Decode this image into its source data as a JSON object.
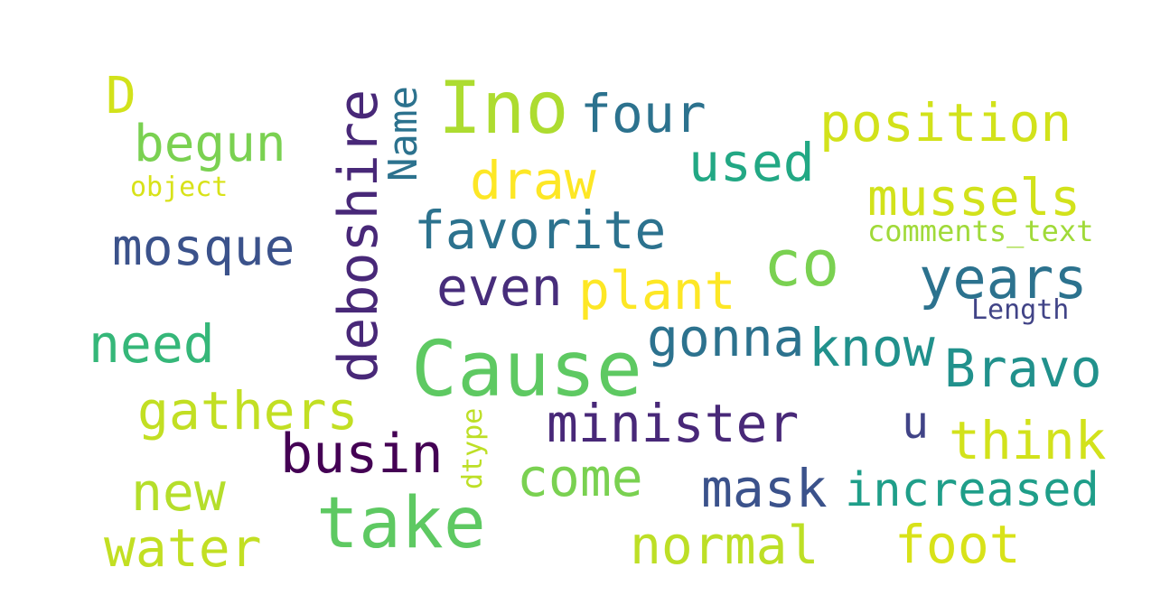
{
  "wordcloud": {
    "background_color": "#ffffff",
    "words": [
      {
        "text": "Cause",
        "color": "#5ec962"
      },
      {
        "text": "take",
        "color": "#5ec962"
      },
      {
        "text": "Ino",
        "color": "#addc30"
      },
      {
        "text": "co",
        "color": "#7ad151"
      },
      {
        "text": "deboshire",
        "color": "#482878"
      },
      {
        "text": "busin",
        "color": "#440154"
      },
      {
        "text": "position",
        "color": "#d2e21b"
      },
      {
        "text": "four",
        "color": "#2c728e"
      },
      {
        "text": "begun",
        "color": "#7ad151"
      },
      {
        "text": "mosque",
        "color": "#3b528b"
      },
      {
        "text": "favorite",
        "color": "#2c728e"
      },
      {
        "text": "plant",
        "color": "#fde725"
      },
      {
        "text": "even",
        "color": "#472d7b"
      },
      {
        "text": "draw",
        "color": "#fde725"
      },
      {
        "text": "used",
        "color": "#22a884"
      },
      {
        "text": "mussels",
        "color": "#d2e21b"
      },
      {
        "text": "years",
        "color": "#2c728e"
      },
      {
        "text": "need",
        "color": "#35b779"
      },
      {
        "text": "gathers",
        "color": "#c2df23"
      },
      {
        "text": "minister",
        "color": "#482878"
      },
      {
        "text": "gonna",
        "color": "#2c728e"
      },
      {
        "text": "know",
        "color": "#21918c"
      },
      {
        "text": "Bravo",
        "color": "#21918c"
      },
      {
        "text": "think",
        "color": "#d2e21b"
      },
      {
        "text": "come",
        "color": "#7ad151"
      },
      {
        "text": "mask",
        "color": "#3b528b"
      },
      {
        "text": "increased",
        "color": "#1f9e89"
      },
      {
        "text": "new",
        "color": "#b5de2b"
      },
      {
        "text": "water",
        "color": "#c2df23"
      },
      {
        "text": "normal",
        "color": "#bddf26"
      },
      {
        "text": "foot",
        "color": "#d8e219"
      },
      {
        "text": "u",
        "color": "#414487"
      },
      {
        "text": "D",
        "color": "#d2e21b"
      },
      {
        "text": "Name",
        "color": "#2c728e"
      },
      {
        "text": "object",
        "color": "#d8e219"
      },
      {
        "text": "comments_text",
        "color": "#a0da39"
      },
      {
        "text": "Length",
        "color": "#414487"
      },
      {
        "text": "dtype",
        "color": "#bddf26"
      }
    ]
  }
}
